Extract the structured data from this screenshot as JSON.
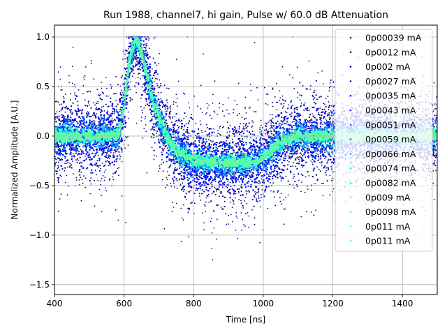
{
  "chart_data": {
    "type": "scatter",
    "title": "Run 1988, channel7, hi gain, Pulse w/ 60.0 dB Attenuation",
    "xlabel": "Time [ns]",
    "ylabel": "Normalized Amplitude [A.U.]",
    "xlim": [
      400,
      1500
    ],
    "ylim": [
      -1.6,
      1.12
    ],
    "xticks": [
      400,
      600,
      800,
      1000,
      1200,
      1400
    ],
    "xtick_labels": [
      "400",
      "600",
      "800",
      "1000",
      "1200",
      "1400"
    ],
    "yticks": [
      1.0,
      0.5,
      0.0,
      -0.5,
      -1.0,
      -1.5
    ],
    "ytick_labels": [
      "1.0",
      "0.5",
      "0.0",
      "−0.5",
      "−1.0",
      "−1.5"
    ],
    "grid": true,
    "legend_position": "top-right",
    "pulse_shape": {
      "x": [
        400,
        560,
        585,
        600,
        615,
        630,
        645,
        660,
        680,
        700,
        730,
        760,
        800,
        850,
        900,
        950,
        980,
        1000,
        1030,
        1060,
        1100,
        1150,
        1200,
        1300,
        1400,
        1500
      ],
      "y": [
        0.0,
        0.0,
        0.02,
        0.3,
        0.75,
        0.97,
        0.92,
        0.7,
        0.4,
        0.18,
        -0.05,
        -0.17,
        -0.24,
        -0.26,
        -0.27,
        -0.27,
        -0.26,
        -0.22,
        -0.12,
        -0.04,
        0.0,
        0.0,
        0.0,
        0.0,
        0.0,
        0.0
      ]
    },
    "series": [
      {
        "name": "0p00039 mA",
        "color": "#000080"
      },
      {
        "name": "0p0012 mA",
        "color": "#00008f"
      },
      {
        "name": "0p002 mA",
        "color": "#0000b2"
      },
      {
        "name": "0p0027 mA",
        "color": "#0000d8"
      },
      {
        "name": "0p0035 mA",
        "color": "#0000ff"
      },
      {
        "name": "0p0043 mA",
        "color": "#0020ff"
      },
      {
        "name": "0p0051 mA",
        "color": "#0050ff"
      },
      {
        "name": "0p0059 mA",
        "color": "#0080ff"
      },
      {
        "name": "0p0066 mA",
        "color": "#00a8ff"
      },
      {
        "name": "0p0074 mA",
        "color": "#00d4ff"
      },
      {
        "name": "0p0082 mA",
        "color": "#29ffce"
      },
      {
        "name": "0p009 mA",
        "color": "#3dffb9"
      },
      {
        "name": "0p0098 mA",
        "color": "#50ffa6"
      },
      {
        "name": "0p011 mA",
        "color": "#5effa0"
      },
      {
        "name": "0p011 mA",
        "color": "#66ff90"
      }
    ]
  }
}
